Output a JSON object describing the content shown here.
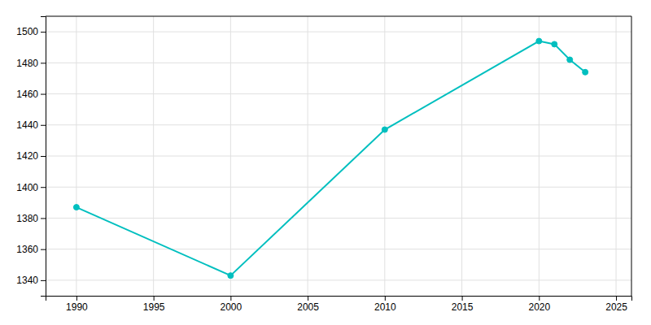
{
  "chart_data": {
    "type": "line",
    "x": [
      1990,
      2000,
      2010,
      2020,
      2021,
      2022,
      2023
    ],
    "values": [
      1387,
      1343,
      1437,
      1494,
      1492,
      1482,
      1474
    ],
    "color": "#00BFBF",
    "marker": "circle",
    "xlim": [
      1988,
      2026
    ],
    "ylim": [
      1330,
      1510
    ],
    "xticks": [
      1990,
      1995,
      2000,
      2005,
      2010,
      2015,
      2020,
      2025
    ],
    "yticks": [
      1340,
      1360,
      1380,
      1400,
      1420,
      1440,
      1460,
      1480,
      1500
    ],
    "grid": true
  }
}
